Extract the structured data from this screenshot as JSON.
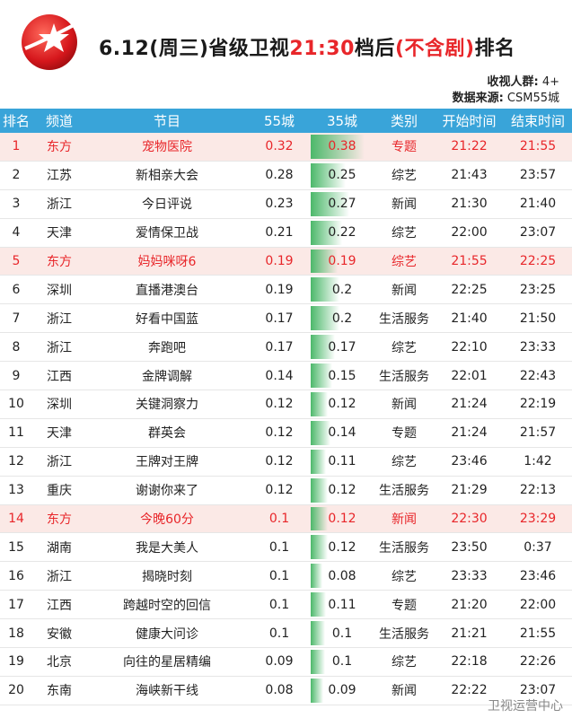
{
  "title": {
    "prefix": "6.12(周三)省级卫视",
    "highlight1": "21:30",
    "middle": "档后",
    "highlight2": "(不含剧)",
    "suffix": "排名"
  },
  "meta": {
    "audience_label": "收视人群:",
    "audience_value": "4+",
    "source_label": "数据来源:",
    "source_value": "CSM55城"
  },
  "columns": [
    "排名",
    "频道",
    "节目",
    "55城",
    "35城",
    "类别",
    "开始时间",
    "结束时间"
  ],
  "rows": [
    {
      "rank": "1",
      "channel": "东方",
      "program": "宠物医院",
      "c55": "0.32",
      "c35": "0.38",
      "type": "专题",
      "start": "21:22",
      "end": "21:55",
      "hl": true
    },
    {
      "rank": "2",
      "channel": "江苏",
      "program": "新相亲大会",
      "c55": "0.28",
      "c35": "0.25",
      "type": "综艺",
      "start": "21:43",
      "end": "23:57",
      "hl": false
    },
    {
      "rank": "3",
      "channel": "浙江",
      "program": "今日评说",
      "c55": "0.23",
      "c35": "0.27",
      "type": "新闻",
      "start": "21:30",
      "end": "21:40",
      "hl": false
    },
    {
      "rank": "4",
      "channel": "天津",
      "program": "爱情保卫战",
      "c55": "0.21",
      "c35": "0.22",
      "type": "综艺",
      "start": "22:00",
      "end": "23:07",
      "hl": false
    },
    {
      "rank": "5",
      "channel": "东方",
      "program": "妈妈咪呀6",
      "c55": "0.19",
      "c35": "0.19",
      "type": "综艺",
      "start": "21:55",
      "end": "22:25",
      "hl": true
    },
    {
      "rank": "6",
      "channel": "深圳",
      "program": "直播港澳台",
      "c55": "0.19",
      "c35": "0.2",
      "type": "新闻",
      "start": "22:25",
      "end": "23:25",
      "hl": false
    },
    {
      "rank": "7",
      "channel": "浙江",
      "program": "好看中国蓝",
      "c55": "0.17",
      "c35": "0.2",
      "type": "生活服务",
      "start": "21:40",
      "end": "21:50",
      "hl": false
    },
    {
      "rank": "8",
      "channel": "浙江",
      "program": "奔跑吧",
      "c55": "0.17",
      "c35": "0.17",
      "type": "综艺",
      "start": "22:10",
      "end": "23:33",
      "hl": false
    },
    {
      "rank": "9",
      "channel": "江西",
      "program": "金牌调解",
      "c55": "0.14",
      "c35": "0.15",
      "type": "生活服务",
      "start": "22:01",
      "end": "22:43",
      "hl": false
    },
    {
      "rank": "10",
      "channel": "深圳",
      "program": "关键洞察力",
      "c55": "0.12",
      "c35": "0.12",
      "type": "新闻",
      "start": "21:24",
      "end": "22:19",
      "hl": false
    },
    {
      "rank": "11",
      "channel": "天津",
      "program": "群英会",
      "c55": "0.12",
      "c35": "0.14",
      "type": "专题",
      "start": "21:24",
      "end": "21:57",
      "hl": false
    },
    {
      "rank": "12",
      "channel": "浙江",
      "program": "王牌对王牌",
      "c55": "0.12",
      "c35": "0.11",
      "type": "综艺",
      "start": "23:46",
      "end": "1:42",
      "hl": false
    },
    {
      "rank": "13",
      "channel": "重庆",
      "program": "谢谢你来了",
      "c55": "0.12",
      "c35": "0.12",
      "type": "生活服务",
      "start": "21:29",
      "end": "22:13",
      "hl": false
    },
    {
      "rank": "14",
      "channel": "东方",
      "program": "今晚60分",
      "c55": "0.1",
      "c35": "0.12",
      "type": "新闻",
      "start": "22:30",
      "end": "23:29",
      "hl": true
    },
    {
      "rank": "15",
      "channel": "湖南",
      "program": "我是大美人",
      "c55": "0.1",
      "c35": "0.12",
      "type": "生活服务",
      "start": "23:50",
      "end": "0:37",
      "hl": false
    },
    {
      "rank": "16",
      "channel": "浙江",
      "program": "揭晓时刻",
      "c55": "0.1",
      "c35": "0.08",
      "type": "综艺",
      "start": "23:33",
      "end": "23:46",
      "hl": false
    },
    {
      "rank": "17",
      "channel": "江西",
      "program": "跨越时空的回信",
      "c55": "0.1",
      "c35": "0.11",
      "type": "专题",
      "start": "21:20",
      "end": "22:00",
      "hl": false
    },
    {
      "rank": "18",
      "channel": "安徽",
      "program": "健康大问诊",
      "c55": "0.1",
      "c35": "0.1",
      "type": "生活服务",
      "start": "21:21",
      "end": "21:55",
      "hl": false
    },
    {
      "rank": "19",
      "channel": "北京",
      "program": "向往的星居精编",
      "c55": "0.09",
      "c35": "0.1",
      "type": "综艺",
      "start": "22:18",
      "end": "22:26",
      "hl": false
    },
    {
      "rank": "20",
      "channel": "东南",
      "program": "海峡新干线",
      "c55": "0.08",
      "c35": "0.09",
      "type": "新闻",
      "start": "22:22",
      "end": "23:07",
      "hl": false
    }
  ],
  "footer": "卫视运营中心",
  "colors": {
    "header_bg": "#39a4d9",
    "highlight": "#e8262a",
    "bar": "#4cb86a"
  }
}
